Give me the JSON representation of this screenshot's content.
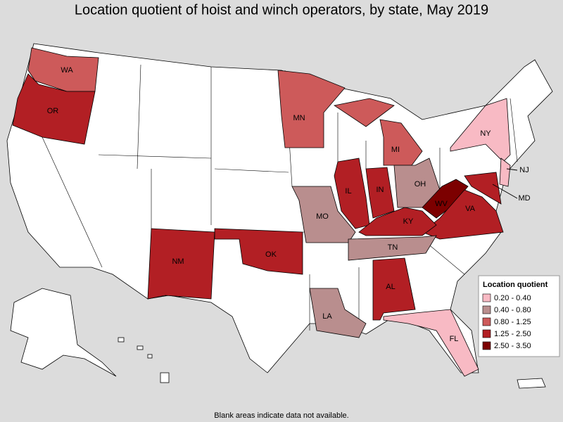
{
  "title": "Location quotient of hoist and winch operators, by state, May 2019",
  "legend": {
    "title": "Location quotient",
    "items": [
      {
        "label": "0.20 - 0.40",
        "color": "#f8bac4"
      },
      {
        "label": "0.40 - 0.80",
        "color": "#b98e8e"
      },
      {
        "label": "0.80 - 1.25",
        "color": "#cd5a5a"
      },
      {
        "label": "1.25 - 2.50",
        "color": "#b21f24"
      },
      {
        "label": "2.50 - 3.50",
        "color": "#7c0000"
      }
    ]
  },
  "states": [
    {
      "abbr": "WA",
      "class": 2
    },
    {
      "abbr": "OR",
      "class": 3
    },
    {
      "abbr": "MN",
      "class": 2
    },
    {
      "abbr": "MI",
      "class": 2
    },
    {
      "abbr": "NY",
      "class": 0
    },
    {
      "abbr": "NJ",
      "class": 0
    },
    {
      "abbr": "IL",
      "class": 3
    },
    {
      "abbr": "IN",
      "class": 3
    },
    {
      "abbr": "OH",
      "class": 1
    },
    {
      "abbr": "WV",
      "class": 4
    },
    {
      "abbr": "MD",
      "class": 3
    },
    {
      "abbr": "VA",
      "class": 3
    },
    {
      "abbr": "KY",
      "class": 3
    },
    {
      "abbr": "MO",
      "class": 1
    },
    {
      "abbr": "TN",
      "class": 1
    },
    {
      "abbr": "OK",
      "class": 3
    },
    {
      "abbr": "NM",
      "class": 3
    },
    {
      "abbr": "AL",
      "class": 3
    },
    {
      "abbr": "LA",
      "class": 1
    },
    {
      "abbr": "FL",
      "class": 0
    }
  ],
  "footnote": "Blank areas indicate data not available."
}
